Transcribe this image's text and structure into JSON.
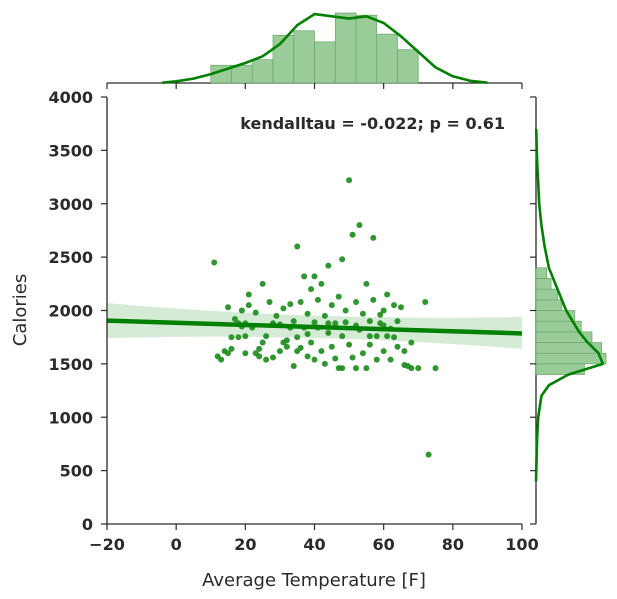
{
  "chart_data": {
    "type": "scatter",
    "kind": "jointplot with regression",
    "xlabel": "Average Temperature [F]",
    "ylabel": "Calories",
    "xlim": [
      -20,
      100
    ],
    "ylim": [
      0,
      4000
    ],
    "x_ticks": [
      "−20",
      "0",
      "20",
      "40",
      "60",
      "80",
      "100"
    ],
    "x_tick_values": [
      -20,
      0,
      20,
      40,
      60,
      80,
      100
    ],
    "y_ticks": [
      "0",
      "500",
      "1000",
      "1500",
      "2000",
      "2500",
      "3000",
      "3500",
      "4000"
    ],
    "y_tick_values": [
      0,
      500,
      1000,
      1500,
      2000,
      2500,
      3000,
      3500,
      4000
    ],
    "annotation": "kendalltau = -0.022; p = 0.61",
    "grid": false,
    "colors": {
      "points": "#1a8c1a",
      "line": "#008000",
      "band": "#cfe8cf",
      "hist": "#99cc99",
      "hist_edge": "#6aa56a",
      "kde": "#008000"
    },
    "regression": {
      "x": [
        -20,
        100
      ],
      "y": [
        1905,
        1785
      ],
      "ci_at_xmin": [
        1740,
        2070
      ],
      "ci_at_mid": [
        1815,
        1880
      ],
      "ci_at_xmax": [
        1640,
        1940
      ]
    },
    "points": [
      [
        11,
        2450
      ],
      [
        12,
        1570
      ],
      [
        13,
        1540
      ],
      [
        14,
        1620
      ],
      [
        15,
        2030
      ],
      [
        15,
        1600
      ],
      [
        16,
        1640
      ],
      [
        17,
        1920
      ],
      [
        18,
        1880
      ],
      [
        18,
        1750
      ],
      [
        19,
        2000
      ],
      [
        19,
        1850
      ],
      [
        20,
        1760
      ],
      [
        20,
        1600
      ],
      [
        21,
        2050
      ],
      [
        21,
        2150
      ],
      [
        22,
        1840
      ],
      [
        23,
        1980
      ],
      [
        23,
        1600
      ],
      [
        24,
        1570
      ],
      [
        25,
        1700
      ],
      [
        25,
        2250
      ],
      [
        26,
        1540
      ],
      [
        26,
        1760
      ],
      [
        27,
        2080
      ],
      [
        28,
        1880
      ],
      [
        28,
        1560
      ],
      [
        29,
        1950
      ],
      [
        30,
        1620
      ],
      [
        30,
        1870
      ],
      [
        31,
        2020
      ],
      [
        32,
        1660
      ],
      [
        32,
        1720
      ],
      [
        33,
        1840
      ],
      [
        34,
        1900
      ],
      [
        34,
        1480
      ],
      [
        35,
        2600
      ],
      [
        35,
        1750
      ],
      [
        36,
        2080
      ],
      [
        36,
        1650
      ],
      [
        37,
        2320
      ],
      [
        37,
        1840
      ],
      [
        38,
        1970
      ],
      [
        38,
        1570
      ],
      [
        39,
        2200
      ],
      [
        39,
        1700
      ],
      [
        40,
        1890
      ],
      [
        40,
        1540
      ],
      [
        41,
        2100
      ],
      [
        41,
        1840
      ],
      [
        42,
        2250
      ],
      [
        42,
        1620
      ],
      [
        43,
        1950
      ],
      [
        43,
        1500
      ],
      [
        44,
        1790
      ],
      [
        44,
        2420
      ],
      [
        45,
        2050
      ],
      [
        45,
        1660
      ],
      [
        46,
        1880
      ],
      [
        46,
        1550
      ],
      [
        47,
        2130
      ],
      [
        47,
        1460
      ],
      [
        48,
        1460
      ],
      [
        48,
        1760
      ],
      [
        49,
        2000
      ],
      [
        49,
        1890
      ],
      [
        50,
        3220
      ],
      [
        50,
        1680
      ],
      [
        51,
        2710
      ],
      [
        51,
        1560
      ],
      [
        52,
        2080
      ],
      [
        52,
        1460
      ],
      [
        53,
        2800
      ],
      [
        53,
        1820
      ],
      [
        54,
        1970
      ],
      [
        54,
        1600
      ],
      [
        55,
        2250
      ],
      [
        55,
        1460
      ],
      [
        56,
        1900
      ],
      [
        56,
        1680
      ],
      [
        57,
        2680
      ],
      [
        57,
        2100
      ],
      [
        58,
        1760
      ],
      [
        58,
        1540
      ],
      [
        59,
        1960
      ],
      [
        59,
        1880
      ],
      [
        60,
        2000
      ],
      [
        60,
        1620
      ],
      [
        61,
        2150
      ],
      [
        61,
        1760
      ],
      [
        62,
        1830
      ],
      [
        62,
        1540
      ],
      [
        63,
        2050
      ],
      [
        64,
        1660
      ],
      [
        64,
        1900
      ],
      [
        65,
        2030
      ],
      [
        66,
        1490
      ],
      [
        67,
        1480
      ],
      [
        68,
        1700
      ],
      [
        68,
        1460
      ],
      [
        70,
        1460
      ],
      [
        73,
        650
      ],
      [
        75,
        1460
      ],
      [
        72,
        2080
      ],
      [
        66,
        1620
      ],
      [
        31,
        1700
      ],
      [
        33,
        2060
      ],
      [
        35,
        1620
      ],
      [
        40,
        2320
      ],
      [
        44,
        1880
      ],
      [
        48,
        2480
      ],
      [
        52,
        1860
      ],
      [
        56,
        1760
      ],
      [
        60,
        1860
      ],
      [
        63,
        1750
      ],
      [
        28,
        1870
      ],
      [
        24,
        1640
      ],
      [
        16,
        1750
      ],
      [
        20,
        1880
      ],
      [
        38,
        1780
      ]
    ],
    "top_hist": {
      "bin_edges": [
        10,
        16,
        22,
        28,
        34,
        40,
        46,
        52,
        58,
        64,
        70
      ],
      "values": [
        16,
        16,
        21,
        43,
        47,
        37,
        63,
        61,
        44,
        30
      ],
      "max": 63,
      "kde_x": [
        -4,
        0,
        5,
        10,
        15,
        20,
        25,
        30,
        35,
        40,
        45,
        50,
        55,
        60,
        65,
        70,
        75,
        80,
        85,
        90
      ],
      "kde_y": [
        0.3,
        1.5,
        4,
        8,
        13,
        18,
        24,
        35,
        52,
        62,
        60,
        58,
        60,
        54,
        42,
        28,
        14,
        6,
        2,
        0.3
      ]
    },
    "right_hist": {
      "bin_edges": [
        1400,
        1500,
        1600,
        1700,
        1800,
        1900,
        2000,
        2100,
        2200,
        2300,
        2400
      ],
      "values": [
        45,
        65,
        61,
        52,
        42,
        36,
        24,
        20,
        14,
        10
      ],
      "max": 65,
      "kde_y": [
        400,
        800,
        1000,
        1200,
        1300,
        1400,
        1500,
        1600,
        1700,
        1800,
        1900,
        2000,
        2200,
        2400,
        2600,
        2800,
        3000,
        3200,
        3400,
        3600,
        3700
      ],
      "kde_x": [
        0,
        1,
        2,
        5,
        12,
        30,
        62,
        58,
        48,
        40,
        34,
        28,
        20,
        12,
        8,
        5,
        3,
        2,
        1,
        0.5,
        0.2
      ]
    }
  }
}
